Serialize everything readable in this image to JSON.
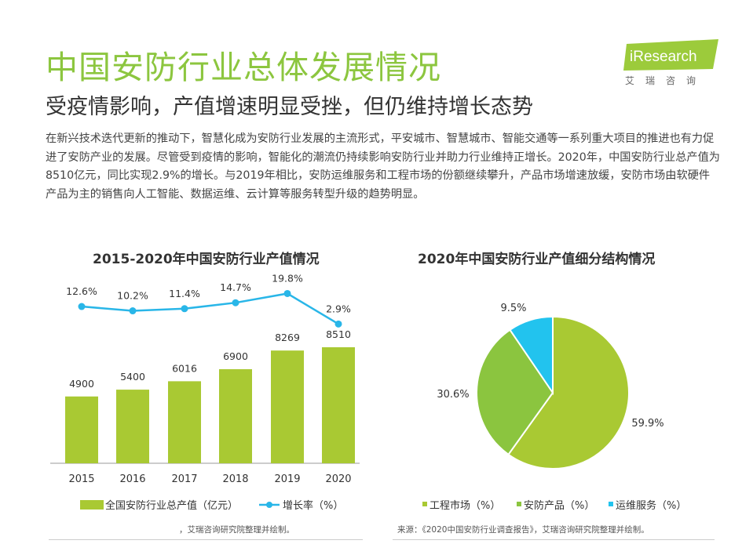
{
  "header": {
    "title": "中国安防行业总体发展情况",
    "subtitle": "受疫情影响，产值增速明显受挫，但仍维持增长态势"
  },
  "logo": {
    "brand": "iResearch",
    "cn": "艾瑞咨询"
  },
  "intro": "在新兴技术迭代更新的推动下，智慧化成为安防行业发展的主流形式，平安城市、智慧城市、智能交通等一系列重大项目的推进也有力促进了安防产业的发展。尽管受到疫情的影响，智能化的潮流仍持续影响安防行业并助力行业维持正增长。2020年，中国安防行业总产值为8510亿元，同比实现2.9%的增长。与2019年相比，安防运维服务和工程市场的份额继续攀升，产品市场增速放缓，安防市场由软硬件产品为主的销售向人工智能、数据运维、云计算等服务转型升级的趋势明显。",
  "colors": {
    "accent": "#8cc63f",
    "bar": "#a9c933",
    "line": "#29b6e8",
    "pie_engineering": "#a9c933",
    "pie_product": "#8bc53f",
    "pie_service": "#22c3ee"
  },
  "chart_data": [
    {
      "type": "bar",
      "title": "2015-2020年中国安防行业产值情况",
      "categories": [
        "2015",
        "2016",
        "2017",
        "2018",
        "2019",
        "2020"
      ],
      "series": [
        {
          "name": "全国安防行业总产值（亿元）",
          "type": "bar",
          "values": [
            4900,
            5400,
            6016,
            6900,
            8269,
            8510
          ],
          "labels": [
            "4900",
            "5400",
            "6016",
            "6900",
            "8269",
            "8510"
          ]
        },
        {
          "name": "增长率（%）",
          "type": "line",
          "values": [
            12.6,
            10.2,
            11.4,
            14.7,
            19.8,
            2.9
          ],
          "labels": [
            "12.6%",
            "10.2%",
            "11.4%",
            "14.7%",
            "19.8%",
            "2.9%"
          ]
        }
      ],
      "legend": "bottom",
      "grid": false
    },
    {
      "type": "pie",
      "title": "2020年中国安防行业产值细分结构情况",
      "slices": [
        {
          "name": "工程市场（%）",
          "value": 59.9,
          "label": "59.9%"
        },
        {
          "name": "安防产品（%）",
          "value": 30.6,
          "label": "30.6%"
        },
        {
          "name": "运维服务（%）",
          "value": 9.5,
          "label": "9.5%"
        }
      ],
      "legend": "bottom"
    }
  ],
  "sources": {
    "left": "，艾瑞咨询研究院整理并绘制。",
    "right": "来源：《2020中国安防行业调查报告》，艾瑞咨询研究院整理并绘制。"
  }
}
